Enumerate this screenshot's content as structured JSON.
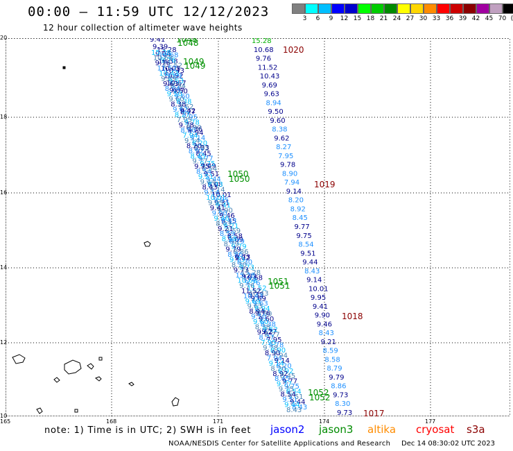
{
  "header": {
    "title": "00:00 – 11:59 UTC 12/12/2023",
    "subtitle": "12 hour collection of altimeter wave heights"
  },
  "legend": {
    "colors": [
      "#808080",
      "#00ffff",
      "#00bfff",
      "#0000ff",
      "#0000cd",
      "#00ff00",
      "#00cd00",
      "#008b00",
      "#ffff00",
      "#ffd700",
      "#ff8c00",
      "#ff0000",
      "#cd0000",
      "#8b0000",
      "#a000a0",
      "#c0a0c0",
      "#000000"
    ],
    "labels": [
      "3",
      "6",
      "9",
      "12",
      "15",
      "18",
      "21",
      "24",
      "27",
      "30",
      "33",
      "36",
      "39",
      "42",
      "45",
      "70",
      "(ft)"
    ]
  },
  "axes": {
    "lat_labels": [
      "20",
      "18",
      "16",
      "14",
      "12",
      "10"
    ],
    "lon_labels": [
      "165",
      "168",
      "171",
      "174",
      "177"
    ]
  },
  "track_right": [
    {
      "v": "15.28",
      "c": "#00b000"
    },
    {
      "v": "10.68",
      "c": "#00008b"
    },
    {
      "v": "9.76",
      "c": "#00008b"
    },
    {
      "v": "11.52",
      "c": "#00008b"
    },
    {
      "v": "10.43",
      "c": "#00008b"
    },
    {
      "v": "9.69",
      "c": "#00008b"
    },
    {
      "v": "9.63",
      "c": "#00008b"
    },
    {
      "v": "8.94",
      "c": "#1e90ff"
    },
    {
      "v": "9.50",
      "c": "#00008b"
    },
    {
      "v": "9.60",
      "c": "#00008b"
    },
    {
      "v": "8.38",
      "c": "#1e90ff"
    },
    {
      "v": "9.62",
      "c": "#00008b"
    },
    {
      "v": "8.27",
      "c": "#1e90ff"
    },
    {
      "v": "7.95",
      "c": "#1e90ff"
    },
    {
      "v": "9.78",
      "c": "#00008b"
    },
    {
      "v": "8.90",
      "c": "#1e90ff"
    },
    {
      "v": "7.94",
      "c": "#1e90ff"
    },
    {
      "v": "9.14",
      "c": "#00008b"
    },
    {
      "v": "8.20",
      "c": "#1e90ff"
    },
    {
      "v": "8.92",
      "c": "#1e90ff"
    },
    {
      "v": "8.45",
      "c": "#1e90ff"
    },
    {
      "v": "9.77",
      "c": "#00008b"
    },
    {
      "v": "9.75",
      "c": "#00008b"
    },
    {
      "v": "8.54",
      "c": "#1e90ff"
    },
    {
      "v": "9.51",
      "c": "#00008b"
    },
    {
      "v": "9.44",
      "c": "#00008b"
    },
    {
      "v": "8.43",
      "c": "#1e90ff"
    },
    {
      "v": "9.14",
      "c": "#00008b"
    },
    {
      "v": "10.01",
      "c": "#00008b"
    },
    {
      "v": "9.95",
      "c": "#00008b"
    },
    {
      "v": "9.41",
      "c": "#00008b"
    },
    {
      "v": "9.90",
      "c": "#00008b"
    },
    {
      "v": "9.46",
      "c": "#00008b"
    },
    {
      "v": "8.43",
      "c": "#1e90ff"
    },
    {
      "v": "9.21",
      "c": "#00008b"
    },
    {
      "v": "8.59",
      "c": "#1e90ff"
    },
    {
      "v": "8.58",
      "c": "#1e90ff"
    },
    {
      "v": "8.79",
      "c": "#1e90ff"
    },
    {
      "v": "9.79",
      "c": "#00008b"
    },
    {
      "v": "8.86",
      "c": "#1e90ff"
    },
    {
      "v": "9.73",
      "c": "#00008b"
    },
    {
      "v": "8.30",
      "c": "#1e90ff"
    },
    {
      "v": "9.73",
      "c": "#00008b"
    }
  ],
  "track_left_upper": [
    {
      "v": "9.41",
      "c": "#00008b"
    },
    {
      "v": "9.39",
      "c": "#00008b"
    },
    {
      "v": "9.04",
      "c": "#00008b"
    },
    {
      "v": "10.38",
      "c": "#00008b"
    },
    {
      "v": "10.05",
      "c": "#00008b"
    },
    {
      "v": "10.92",
      "c": "#00008b"
    },
    {
      "v": "10.67",
      "c": "#00008b"
    },
    {
      "v": "9.87",
      "c": "#00008b"
    }
  ],
  "track_left_mid": [
    {
      "v": "9.42",
      "c": "#00008b"
    },
    {
      "v": "9.36",
      "c": "#00008b"
    },
    {
      "v": "9.33",
      "c": "#00008b"
    },
    {
      "v": "9.49",
      "c": "#00008b"
    },
    {
      "v": "9.08",
      "c": "#00008b"
    },
    {
      "v": "9.31",
      "c": "#00008b"
    },
    {
      "v": "9.15",
      "c": "#00008b"
    },
    {
      "v": "9.09",
      "c": "#00008b"
    },
    {
      "v": "9.02",
      "c": "#00008b"
    },
    {
      "v": "9.03",
      "c": "#00008b"
    },
    {
      "v": "9.33",
      "c": "#00008b"
    },
    {
      "v": "9.76",
      "c": "#00008b"
    },
    {
      "v": "9.27",
      "c": "#00008b"
    }
  ],
  "time_tags": [
    {
      "t": "1048",
      "c": "#009000"
    },
    {
      "t": "1048",
      "c": "#009000"
    },
    {
      "t": "1049",
      "c": "#009000"
    },
    {
      "t": "1049",
      "c": "#009000"
    },
    {
      "t": "1050",
      "c": "#009000"
    },
    {
      "t": "1050",
      "c": "#009000"
    },
    {
      "t": "1051",
      "c": "#009000"
    },
    {
      "t": "1051",
      "c": "#009000"
    },
    {
      "t": "1052",
      "c": "#009000"
    },
    {
      "t": "1052",
      "c": "#009000"
    },
    {
      "t": "1020",
      "c": "#8b0000"
    },
    {
      "t": "1019",
      "c": "#8b0000"
    },
    {
      "t": "1018",
      "c": "#8b0000"
    },
    {
      "t": "1017",
      "c": "#8b0000"
    }
  ],
  "footer": {
    "note": "note: 1) Time is in UTC; 2) SWH is in feet",
    "satellites": [
      {
        "name": "jason2",
        "color": "#0000ff"
      },
      {
        "name": "jason3",
        "color": "#008b00"
      },
      {
        "name": "altika",
        "color": "#ff8c00"
      },
      {
        "name": "cryosat",
        "color": "#ff0000"
      },
      {
        "name": "s3a",
        "color": "#8b0000"
      }
    ],
    "credit": "NOAA/NESDIS Center for Satellite Applications and Research",
    "timestamp": "Dec 14 08:30:02 UTC 2023"
  }
}
